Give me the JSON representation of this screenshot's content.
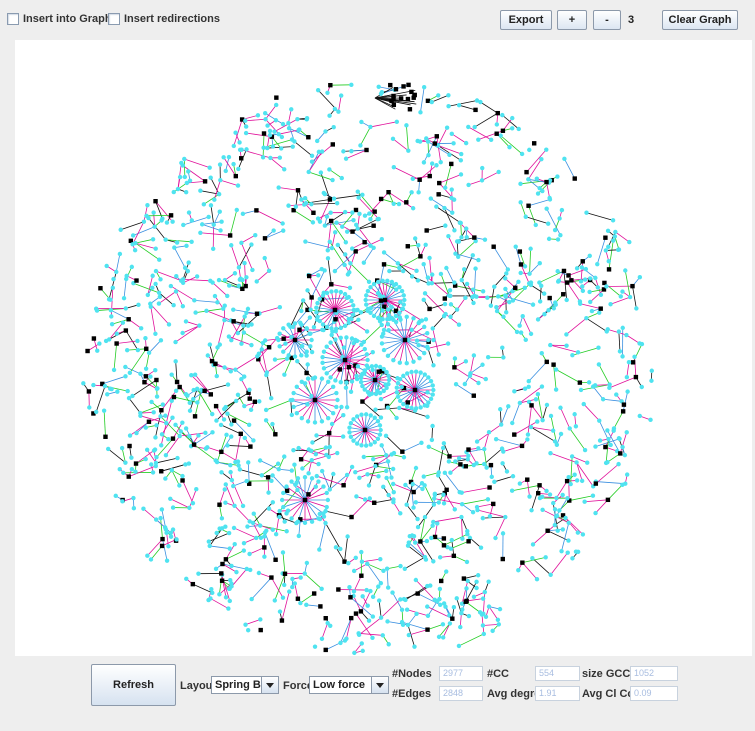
{
  "toolbar": {
    "insert_graph_label": "Insert into Graph",
    "insert_redirections_label": "Insert redirections",
    "export_label": "Export",
    "zoom_in_label": "+",
    "zoom_out_label": "-",
    "zoom_level": "3",
    "clear_label": "Clear Graph"
  },
  "controls": {
    "refresh_label": "Refresh",
    "layout_label": "Layout",
    "layout_value": "Spring Box",
    "force_label": "Force",
    "force_value": "Low force"
  },
  "stats": {
    "nodes_label": "#Nodes",
    "nodes_value": "2977",
    "edges_label": "#Edges",
    "edges_value": "2848",
    "cc_label": "#CC",
    "cc_value": "554",
    "avg_degree_label": "Avg degree",
    "avg_degree_value": "1.91",
    "gcc_label": "size GCC",
    "gcc_value": "1052",
    "clcoef_label": "Avg Cl Coef",
    "clcoef_value": "0.09"
  },
  "colors": {
    "node_cyan": "#4fe3f0",
    "node_black": "#000000",
    "edge_magenta": "#e0109a",
    "edge_blue": "#3a8fe0",
    "edge_green": "#22cc22",
    "edge_black": "#111111"
  }
}
